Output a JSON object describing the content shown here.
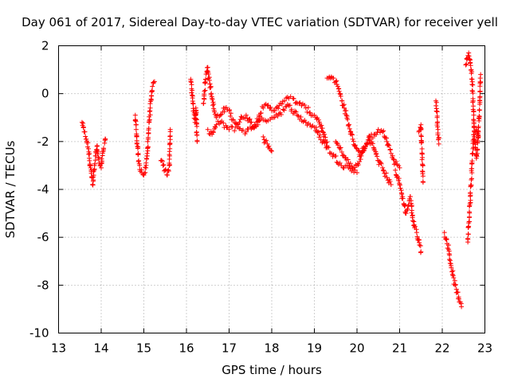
{
  "chart_data": {
    "type": "scatter",
    "title": "Day 061 of 2017, Sidereal Day-to-day VTEC variation (SDTVAR) for receiver yell",
    "xlabel": "GPS time / hours",
    "ylabel": "SDTVAR / TECUs",
    "xlim": [
      13,
      23
    ],
    "ylim": [
      -10,
      2
    ],
    "xticks": [
      13,
      14,
      15,
      16,
      17,
      18,
      19,
      20,
      21,
      22,
      23
    ],
    "yticks": [
      -10,
      -8,
      -6,
      -4,
      -2,
      0,
      2
    ],
    "grid": true,
    "marker": "plus",
    "series": [
      {
        "name": "SDTVAR",
        "color": "#ff0000",
        "segments": [
          {
            "x": [
              13.55,
              13.6,
              13.65,
              13.7,
              13.72,
              13.75,
              13.78,
              13.8,
              13.83,
              13.87,
              13.9,
              13.95,
              14.0,
              14.05,
              14.1
            ],
            "y": [
              -1.2,
              -1.6,
              -1.9,
              -2.3,
              -2.7,
              -3.1,
              -3.5,
              -3.8,
              -3.2,
              -2.6,
              -2.2,
              -2.9,
              -3.1,
              -2.4,
              -1.9
            ]
          },
          {
            "x": [
              14.8,
              14.82,
              14.85,
              14.88,
              14.9,
              14.95,
              15.0,
              15.05,
              15.08,
              15.1,
              15.12,
              15.15,
              15.18,
              15.2,
              15.25
            ],
            "y": [
              -0.9,
              -1.5,
              -2.2,
              -2.8,
              -3.0,
              -3.3,
              -3.4,
              -3.1,
              -2.6,
              -1.9,
              -1.2,
              -0.6,
              -0.1,
              0.3,
              0.5
            ]
          },
          {
            "x": [
              15.4,
              15.45,
              15.5,
              15.55,
              15.6,
              15.62
            ],
            "y": [
              -2.8,
              -3.0,
              -3.2,
              -3.4,
              -3.0,
              -1.5
            ]
          },
          {
            "x": [
              16.1,
              16.12,
              16.15,
              16.18,
              16.2,
              16.22,
              16.25
            ],
            "y": [
              0.6,
              0.2,
              -0.4,
              -0.8,
              -1.2,
              -0.6,
              -2.0
            ]
          },
          {
            "x": [
              16.4,
              16.45,
              16.5,
              16.55,
              16.6,
              16.65,
              16.7,
              16.8,
              16.9,
              17.0,
              17.1,
              17.2,
              17.3,
              17.4,
              17.5,
              17.6,
              17.7,
              17.8,
              17.9,
              18.0,
              18.1,
              18.2,
              18.3,
              18.4,
              18.5,
              18.6,
              18.7,
              18.8,
              18.9,
              19.0,
              19.1,
              19.2,
              19.3
            ],
            "y": [
              -0.4,
              0.6,
              1.1,
              0.4,
              -0.2,
              -0.7,
              -1.0,
              -0.9,
              -0.6,
              -0.7,
              -1.1,
              -1.3,
              -1.0,
              -0.9,
              -1.2,
              -1.4,
              -0.9,
              -0.6,
              -0.5,
              -0.7,
              -0.6,
              -0.4,
              -0.3,
              -0.2,
              -0.2,
              -0.4,
              -0.5,
              -0.6,
              -0.8,
              -0.9,
              -1.1,
              -1.6,
              -2.2
            ]
          },
          {
            "x": [
              16.5,
              16.6,
              16.7,
              16.8,
              17.0,
              17.2,
              17.4,
              17.6,
              17.8,
              18.0,
              18.2,
              18.4,
              18.6,
              18.8,
              19.0,
              19.2,
              19.4,
              19.6,
              19.8,
              20.0
            ],
            "y": [
              -1.5,
              -1.7,
              -1.3,
              -1.2,
              -1.5,
              -1.4,
              -1.6,
              -1.3,
              -1.1,
              -1.0,
              -0.8,
              -0.5,
              -0.9,
              -1.2,
              -1.4,
              -2.0,
              -2.5,
              -2.9,
              -3.1,
              -3.3
            ]
          },
          {
            "x": [
              17.8,
              17.85,
              17.9,
              17.95,
              18.0
            ],
            "y": [
              -1.8,
              -2.0,
              -2.1,
              -2.3,
              -2.4
            ]
          },
          {
            "x": [
              19.3,
              19.35,
              19.4,
              19.45,
              19.5,
              19.55,
              19.6,
              19.65,
              19.7,
              19.75,
              19.8,
              19.9,
              20.0,
              20.1,
              20.2,
              20.3,
              20.4,
              20.5,
              20.6,
              20.7,
              20.8,
              20.9,
              21.0
            ],
            "y": [
              0.65,
              0.7,
              0.7,
              0.65,
              0.5,
              0.3,
              0.0,
              -0.3,
              -0.6,
              -0.9,
              -1.3,
              -1.9,
              -2.3,
              -2.5,
              -2.2,
              -1.8,
              -1.7,
              -1.5,
              -1.6,
              -2.0,
              -2.5,
              -2.9,
              -3.1
            ]
          },
          {
            "x": [
              19.5,
              19.6,
              19.7,
              19.8,
              19.9,
              20.0,
              20.1,
              20.2,
              20.3,
              20.4,
              20.5,
              20.6,
              20.7,
              20.8
            ],
            "y": [
              -2.0,
              -2.3,
              -2.6,
              -2.9,
              -3.1,
              -3.0,
              -2.6,
              -2.2,
              -1.9,
              -2.3,
              -2.8,
              -3.1,
              -3.5,
              -3.8
            ]
          },
          {
            "x": [
              20.9,
              21.0,
              21.05,
              21.1,
              21.15,
              21.2,
              21.25,
              21.3,
              21.35,
              21.4,
              21.45,
              21.5
            ],
            "y": [
              -3.2,
              -3.8,
              -4.2,
              -4.6,
              -5.0,
              -4.7,
              -4.3,
              -5.1,
              -5.6,
              -5.8,
              -6.1,
              -6.6
            ]
          },
          {
            "x": [
              21.45,
              21.5,
              21.55
            ],
            "y": [
              -1.6,
              -1.3,
              -3.7
            ]
          },
          {
            "x": [
              21.85,
              21.88,
              21.9,
              21.92
            ],
            "y": [
              -0.3,
              -1.0,
              -1.5,
              -2.1
            ]
          },
          {
            "x": [
              22.05,
              22.1,
              22.15,
              22.2,
              22.25,
              22.3,
              22.35,
              22.4,
              22.45
            ],
            "y": [
              -5.8,
              -6.1,
              -6.5,
              -7.1,
              -7.6,
              -8.0,
              -8.3,
              -8.7,
              -8.9
            ]
          },
          {
            "x": [
              22.55,
              22.6,
              22.62,
              22.65,
              22.68,
              22.7,
              22.72,
              22.75,
              22.8,
              22.85,
              22.9
            ],
            "y": [
              1.2,
              1.5,
              1.7,
              1.4,
              1.0,
              0.6,
              -0.3,
              -1.8,
              -2.7,
              -1.6,
              0.8
            ]
          },
          {
            "x": [
              22.6,
              22.62,
              22.65,
              22.68,
              22.7,
              22.72,
              22.75,
              22.8,
              22.85
            ],
            "y": [
              -6.2,
              -5.4,
              -4.6,
              -3.6,
              -2.9,
              -2.3,
              -1.6,
              -1.5,
              -1.8
            ]
          }
        ]
      }
    ]
  }
}
